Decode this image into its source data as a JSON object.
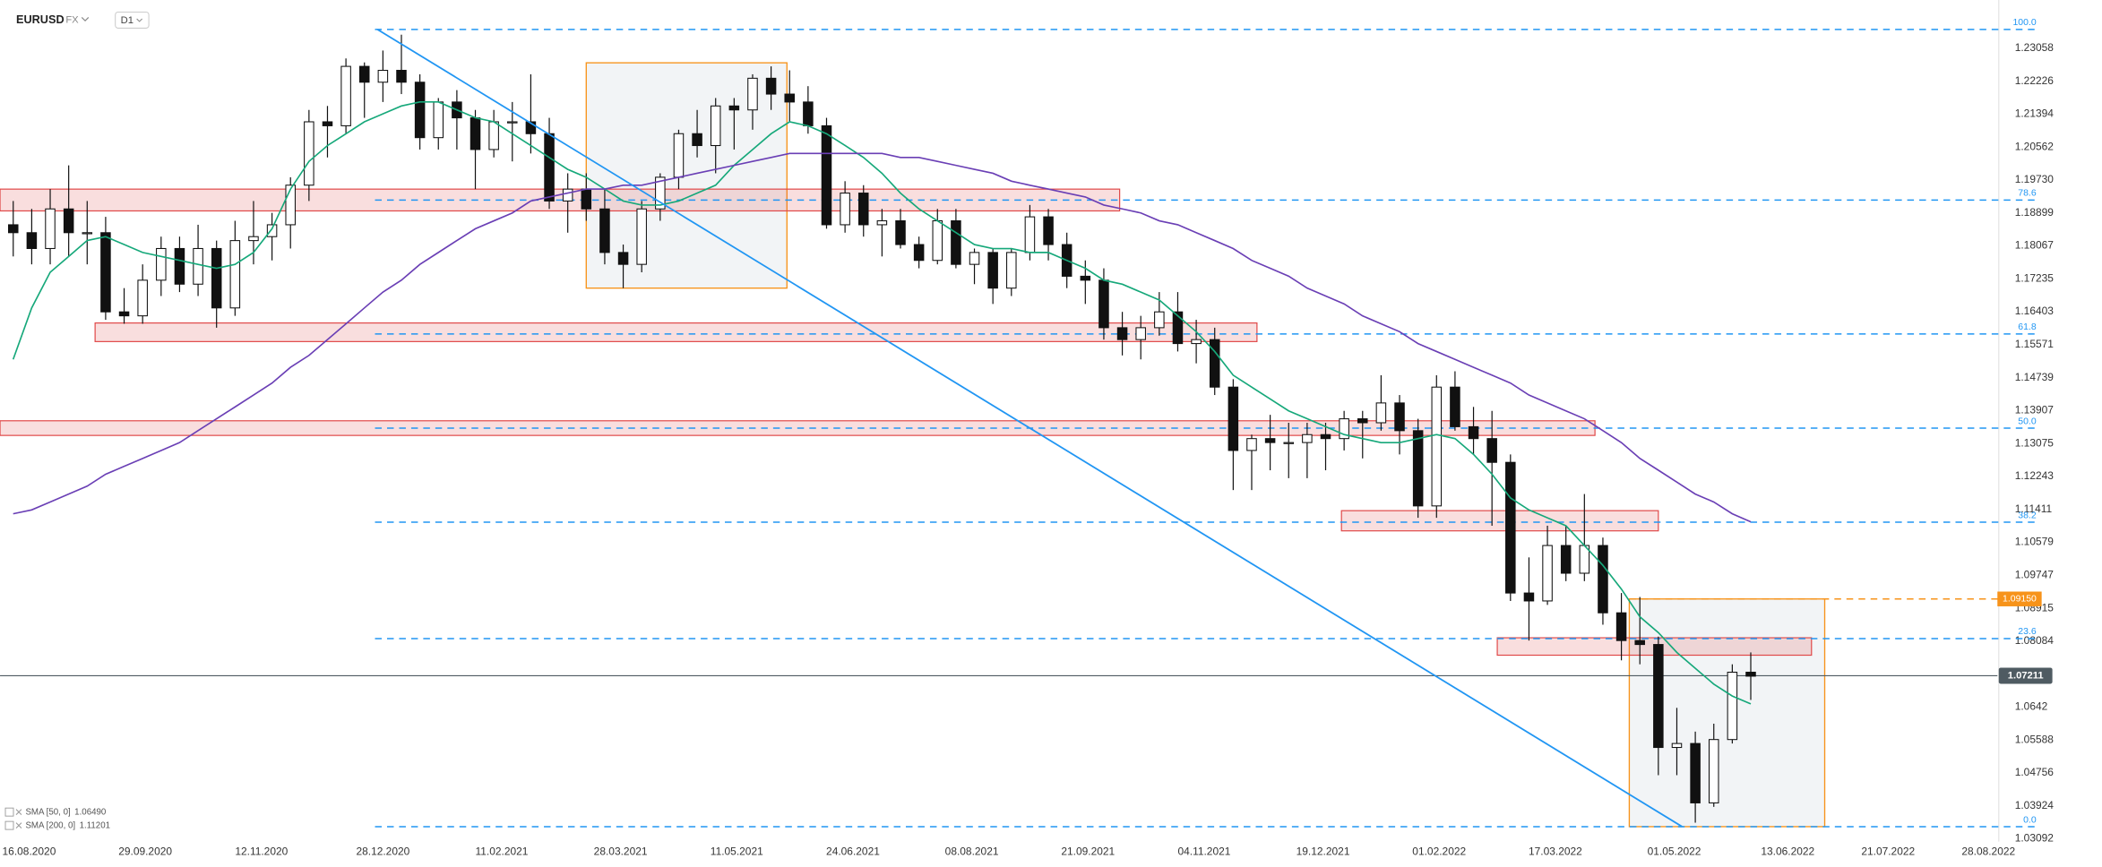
{
  "header": {
    "symbol": "EURUSD",
    "market": "FX",
    "interval": "D1"
  },
  "chart_data": {
    "type": "candlestick",
    "xlim": [
      "05.08.2020",
      "10.10.2022"
    ],
    "ylim": [
      1.03024,
      1.24276
    ],
    "xticks": [
      "16.08.2020",
      "29.09.2020",
      "12.11.2020",
      "28.12.2020",
      "11.02.2021",
      "28.03.2021",
      "11.05.2021",
      "24.06.2021",
      "08.08.2021",
      "21.09.2021",
      "04.11.2021",
      "19.12.2021",
      "01.02.2022",
      "17.03.2022",
      "01.05.2022",
      "13.06.2022",
      "21.07.2022",
      "28.08.2022"
    ],
    "yticks": [
      1.23058,
      1.22226,
      1.21394,
      1.20562,
      {
        "value": 1.1973,
        "label": "1.19730"
      },
      1.18899,
      1.18067,
      1.17235,
      1.16403,
      1.15571,
      1.14739,
      1.13907,
      1.13075,
      1.12243,
      1.11411,
      1.10579,
      1.09747,
      1.08915,
      1.08084,
      1.0642,
      1.05588,
      1.04756,
      1.03924,
      1.03092
    ],
    "up_color": "#ffffff",
    "down_color": "#111111",
    "candles": {
      "x": [
        "10.08.2020",
        "17.08.2020",
        "24.08.2020",
        "31.08.2020",
        "07.09.2020",
        "14.09.2020",
        "21.09.2020",
        "28.09.2020",
        "05.10.2020",
        "12.10.2020",
        "19.10.2020",
        "26.10.2020",
        "02.11.2020",
        "09.11.2020",
        "16.11.2020",
        "23.11.2020",
        "30.11.2020",
        "07.12.2020",
        "14.12.2020",
        "21.12.2020",
        "28.12.2020",
        "04.01.2021",
        "11.01.2021",
        "18.01.2021",
        "25.01.2021",
        "01.02.2021",
        "08.02.2021",
        "15.02.2021",
        "22.02.2021",
        "01.03.2021",
        "08.03.2021",
        "15.03.2021",
        "22.03.2021",
        "29.03.2021",
        "05.04.2021",
        "12.04.2021",
        "19.04.2021",
        "26.04.2021",
        "03.05.2021",
        "10.05.2021",
        "17.05.2021",
        "24.05.2021",
        "31.05.2021",
        "07.06.2021",
        "14.06.2021",
        "21.06.2021",
        "28.06.2021",
        "05.07.2021",
        "12.07.2021",
        "19.07.2021",
        "26.07.2021",
        "02.08.2021",
        "09.08.2021",
        "16.08.2021",
        "23.08.2021",
        "30.08.2021",
        "06.09.2021",
        "13.09.2021",
        "20.09.2021",
        "27.09.2021",
        "04.10.2021",
        "11.10.2021",
        "18.10.2021",
        "25.10.2021",
        "01.11.2021",
        "08.11.2021",
        "15.11.2021",
        "22.11.2021",
        "29.11.2021",
        "06.12.2021",
        "13.12.2021",
        "20.12.2021",
        "27.12.2021",
        "03.01.2022",
        "10.01.2022",
        "17.01.2022",
        "24.01.2022",
        "31.01.2022",
        "07.02.2022",
        "14.02.2022",
        "21.02.2022",
        "28.02.2022",
        "07.03.2022",
        "14.03.2022",
        "21.03.2022",
        "28.03.2022",
        "04.04.2022",
        "11.04.2022",
        "18.04.2022",
        "25.04.2022",
        "02.05.2022",
        "09.05.2022",
        "16.05.2022",
        "23.05.2022",
        "30.05.2022"
      ],
      "open": [
        1.186,
        1.184,
        1.18,
        1.19,
        1.184,
        1.184,
        1.164,
        1.163,
        1.172,
        1.18,
        1.171,
        1.18,
        1.165,
        1.182,
        1.183,
        1.186,
        1.196,
        1.212,
        1.211,
        1.226,
        1.222,
        1.225,
        1.222,
        1.208,
        1.217,
        1.213,
        1.205,
        1.212,
        1.212,
        1.209,
        1.192,
        1.195,
        1.19,
        1.179,
        1.176,
        1.19,
        1.198,
        1.209,
        1.206,
        1.216,
        1.215,
        1.223,
        1.219,
        1.217,
        1.211,
        1.186,
        1.194,
        1.186,
        1.187,
        1.181,
        1.177,
        1.187,
        1.176,
        1.179,
        1.17,
        1.179,
        1.188,
        1.181,
        1.173,
        1.172,
        1.16,
        1.157,
        1.16,
        1.164,
        1.156,
        1.157,
        1.145,
        1.129,
        1.132,
        1.131,
        1.131,
        1.133,
        1.132,
        1.137,
        1.136,
        1.141,
        1.134,
        1.115,
        1.145,
        1.135,
        1.132,
        1.126,
        1.093,
        1.091,
        1.105,
        1.098,
        1.105,
        1.088,
        1.081,
        1.08,
        1.054,
        1.055,
        1.04,
        1.056,
        1.073
      ],
      "high": [
        1.192,
        1.19,
        1.195,
        1.201,
        1.192,
        1.188,
        1.17,
        1.176,
        1.183,
        1.183,
        1.186,
        1.182,
        1.187,
        1.192,
        1.189,
        1.198,
        1.215,
        1.216,
        1.228,
        1.227,
        1.23,
        1.234,
        1.224,
        1.218,
        1.22,
        1.215,
        1.215,
        1.217,
        1.224,
        1.213,
        1.199,
        1.199,
        1.195,
        1.181,
        1.192,
        1.199,
        1.21,
        1.215,
        1.218,
        1.218,
        1.224,
        1.226,
        1.225,
        1.221,
        1.213,
        1.197,
        1.196,
        1.19,
        1.19,
        1.183,
        1.19,
        1.19,
        1.18,
        1.18,
        1.18,
        1.191,
        1.19,
        1.184,
        1.177,
        1.175,
        1.164,
        1.163,
        1.169,
        1.169,
        1.162,
        1.16,
        1.147,
        1.133,
        1.138,
        1.136,
        1.136,
        1.136,
        1.139,
        1.139,
        1.148,
        1.143,
        1.137,
        1.148,
        1.149,
        1.14,
        1.139,
        1.128,
        1.102,
        1.11,
        1.11,
        1.118,
        1.107,
        1.093,
        1.092,
        1.082,
        1.064,
        1.058,
        1.06,
        1.075,
        1.078
      ],
      "low": [
        1.178,
        1.176,
        1.176,
        1.178,
        1.176,
        1.162,
        1.161,
        1.161,
        1.168,
        1.169,
        1.168,
        1.16,
        1.163,
        1.176,
        1.177,
        1.18,
        1.192,
        1.203,
        1.209,
        1.213,
        1.217,
        1.219,
        1.205,
        1.205,
        1.205,
        1.195,
        1.203,
        1.202,
        1.204,
        1.19,
        1.184,
        1.187,
        1.176,
        1.17,
        1.174,
        1.187,
        1.195,
        1.203,
        1.199,
        1.205,
        1.21,
        1.215,
        1.212,
        1.209,
        1.185,
        1.184,
        1.183,
        1.178,
        1.18,
        1.175,
        1.176,
        1.175,
        1.171,
        1.166,
        1.168,
        1.177,
        1.177,
        1.17,
        1.166,
        1.157,
        1.153,
        1.152,
        1.158,
        1.154,
        1.151,
        1.143,
        1.119,
        1.119,
        1.124,
        1.122,
        1.122,
        1.124,
        1.129,
        1.127,
        1.134,
        1.128,
        1.112,
        1.112,
        1.134,
        1.128,
        1.11,
        1.091,
        1.081,
        1.09,
        1.096,
        1.096,
        1.085,
        1.076,
        1.075,
        1.047,
        1.047,
        1.035,
        1.039,
        1.055,
        1.066
      ],
      "close": [
        1.184,
        1.18,
        1.19,
        1.184,
        1.184,
        1.164,
        1.163,
        1.172,
        1.18,
        1.171,
        1.18,
        1.165,
        1.182,
        1.183,
        1.186,
        1.196,
        1.212,
        1.211,
        1.226,
        1.222,
        1.225,
        1.222,
        1.208,
        1.217,
        1.213,
        1.205,
        1.212,
        1.212,
        1.209,
        1.192,
        1.195,
        1.19,
        1.179,
        1.176,
        1.19,
        1.198,
        1.209,
        1.206,
        1.216,
        1.215,
        1.223,
        1.219,
        1.217,
        1.211,
        1.186,
        1.194,
        1.186,
        1.187,
        1.181,
        1.177,
        1.187,
        1.176,
        1.179,
        1.17,
        1.179,
        1.188,
        1.181,
        1.173,
        1.172,
        1.16,
        1.157,
        1.16,
        1.164,
        1.156,
        1.157,
        1.145,
        1.129,
        1.132,
        1.131,
        1.131,
        1.133,
        1.132,
        1.137,
        1.136,
        1.141,
        1.134,
        1.115,
        1.145,
        1.135,
        1.132,
        1.126,
        1.093,
        1.091,
        1.105,
        1.098,
        1.105,
        1.088,
        1.081,
        1.08,
        1.054,
        1.055,
        1.04,
        1.056,
        1.073,
        1.072
      ]
    },
    "indicators": [
      {
        "name": "SMA [50, 0]",
        "value": {
          "value": 1.0649,
          "label": "1.06490"
        },
        "color": "#16a87a",
        "values": [
          1.152,
          1.165,
          1.174,
          1.178,
          1.182,
          1.183,
          1.181,
          1.179,
          1.178,
          1.177,
          1.176,
          1.175,
          1.176,
          1.179,
          1.185,
          1.195,
          1.202,
          1.206,
          1.209,
          1.212,
          1.214,
          1.216,
          1.217,
          1.217,
          1.215,
          1.213,
          1.212,
          1.209,
          1.206,
          1.203,
          1.2,
          1.198,
          1.195,
          1.192,
          1.191,
          1.191,
          1.192,
          1.194,
          1.196,
          1.201,
          1.205,
          1.209,
          1.212,
          1.211,
          1.209,
          1.206,
          1.203,
          1.199,
          1.194,
          1.19,
          1.187,
          1.184,
          1.181,
          1.18,
          1.18,
          1.179,
          1.179,
          1.177,
          1.175,
          1.172,
          1.171,
          1.169,
          1.167,
          1.163,
          1.159,
          1.154,
          1.148,
          1.145,
          1.142,
          1.139,
          1.137,
          1.135,
          1.133,
          1.132,
          1.131,
          1.131,
          1.132,
          1.133,
          1.132,
          1.128,
          1.123,
          1.117,
          1.114,
          1.112,
          1.11,
          1.105,
          1.1,
          1.094,
          1.087,
          1.083,
          1.078,
          1.074,
          1.07,
          1.067,
          1.065
        ]
      },
      {
        "name": "SMA [200, 0]",
        "value": 1.11201,
        "color": "#6a3fb5",
        "values": [
          1.113,
          1.114,
          1.116,
          1.118,
          1.12,
          1.123,
          1.125,
          1.127,
          1.129,
          1.131,
          1.134,
          1.137,
          1.14,
          1.143,
          1.146,
          1.15,
          1.153,
          1.157,
          1.161,
          1.165,
          1.169,
          1.172,
          1.176,
          1.179,
          1.182,
          1.185,
          1.187,
          1.189,
          1.192,
          1.193,
          1.194,
          1.195,
          1.195,
          1.196,
          1.196,
          1.197,
          1.198,
          1.199,
          1.2,
          1.201,
          1.202,
          1.203,
          1.204,
          1.204,
          1.204,
          1.204,
          1.204,
          1.204,
          1.203,
          1.203,
          1.202,
          1.201,
          1.2,
          1.199,
          1.197,
          1.196,
          1.195,
          1.194,
          1.193,
          1.191,
          1.19,
          1.189,
          1.187,
          1.186,
          1.184,
          1.182,
          1.18,
          1.177,
          1.175,
          1.173,
          1.17,
          1.168,
          1.166,
          1.163,
          1.161,
          1.159,
          1.156,
          1.154,
          1.152,
          1.15,
          1.148,
          1.146,
          1.143,
          1.141,
          1.139,
          1.137,
          1.134,
          1.131,
          1.127,
          1.124,
          1.121,
          1.118,
          1.116,
          1.113,
          1.111
        ]
      }
    ],
    "last_price": {
      "value": 1.07211,
      "color": "#4f5b62"
    },
    "level": {
      "value": 1.0915,
      "label": "1.09150",
      "start": "14.04.2022",
      "color": "#f7931a"
    },
    "fib": {
      "start": "25.12.2020",
      "color": "#2196f3",
      "levels": [
        {
          "ratio": {
            "value": 100,
            "label": "100.0"
          },
          "price": 1.23532
        },
        {
          "ratio": 78.6,
          "price": 1.19223
        },
        {
          "ratio": 61.8,
          "price": 1.15841
        },
        {
          "ratio": {
            "value": 50,
            "label": "50.0"
          },
          "price": 1.13465
        },
        {
          "ratio": 38.2,
          "price": 1.11089
        },
        {
          "ratio": 23.6,
          "price": 1.0815
        },
        {
          "ratio": {
            "value": 0,
            "label": "0.0"
          },
          "price": 1.03398
        }
      ]
    },
    "zone_color": "#e04848",
    "zones": [
      {
        "start": "05.08.2020",
        "end": "03.10.2021",
        "top": 1.195,
        "bottom": 1.1895
      },
      {
        "start": "10.09.2020",
        "end": "24.11.2021",
        "top": 1.1612,
        "bottom": 1.1565
      },
      {
        "start": "05.08.2020",
        "end": "01.04.2022",
        "top": 1.1365,
        "bottom": 1.1328
      },
      {
        "start": "26.12.2021",
        "end": "25.04.2022",
        "top": 1.1138,
        "bottom": 1.1087
      },
      {
        "start": "23.02.2022",
        "end": "22.06.2022",
        "top": 1.0817,
        "bottom": 1.0773
      }
    ],
    "box_color": "#f7931a",
    "boxes": [
      {
        "start": "15.03.2021",
        "end": "30.05.2021",
        "top": 1.2269,
        "bottom": 1.17
      },
      {
        "start": "14.04.2022",
        "end": "27.06.2022",
        "top": 1.0915,
        "bottom": 1.034
      }
    ],
    "trendline": {
      "start": "26.12.2020",
      "start_price": 1.2353,
      "end": "04.05.2022",
      "end_price": 1.034,
      "color": "#2196f3"
    }
  }
}
